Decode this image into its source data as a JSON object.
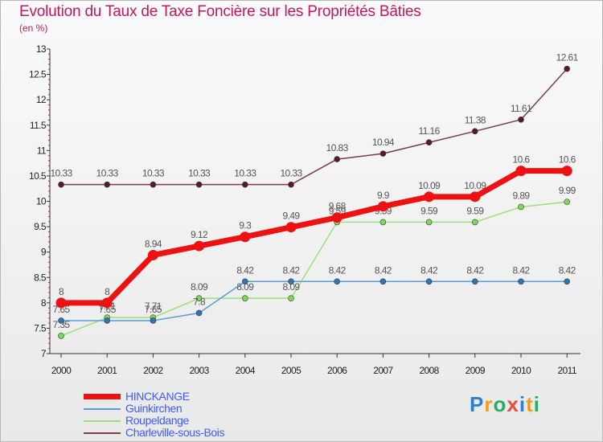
{
  "header": {
    "title": "Evolution du Taux de Taxe Foncière sur les Propriétés Bâties",
    "subtitle": "(en %)"
  },
  "logo": {
    "text": "Proxiti",
    "letters": [
      "P",
      "r",
      "o",
      "x",
      "i",
      "t",
      "i"
    ]
  },
  "chart_data": {
    "type": "line",
    "title": "Evolution du Taux de Taxe Foncière sur les Propriétés Bâties",
    "ylabel": "(en %)",
    "xlabel": "",
    "categories": [
      "2000",
      "2001",
      "2002",
      "2003",
      "2004",
      "2005",
      "2006",
      "2007",
      "2008",
      "2009",
      "2010",
      "2011"
    ],
    "ylim": [
      7,
      13
    ],
    "yticks": [
      "7",
      "7.5",
      "8",
      "8.5",
      "9",
      "9.5",
      "10",
      "10.5",
      "11",
      "11.5",
      "12",
      "12.5",
      "13"
    ],
    "legend_position": "bottom-left",
    "grid": false,
    "series": [
      {
        "name": "HINCKANGE",
        "color": "#ee1111",
        "marker_color": "#ee1111",
        "values": [
          8,
          8,
          8.94,
          9.12,
          9.3,
          9.49,
          9.68,
          9.9,
          10.09,
          10.09,
          10.6,
          10.6
        ],
        "labels": [
          "8",
          "8",
          "8.94",
          "9.12",
          "9.3",
          "9.49",
          "9.68",
          "9.9",
          "10.09",
          "10.09",
          "10.6",
          "10.6"
        ]
      },
      {
        "name": "Guinkirchen",
        "color": "#5b9bd5",
        "marker_color": "#2e75b6",
        "values": [
          7.65,
          7.65,
          7.65,
          7.8,
          8.42,
          8.42,
          8.42,
          8.42,
          8.42,
          8.42,
          8.42,
          8.42
        ],
        "labels": [
          "7.65",
          "7.65",
          "7.65",
          "7.8",
          "8.42",
          "8.42",
          "8.42",
          "8.42",
          "8.42",
          "8.42",
          "8.42",
          "8.42"
        ]
      },
      {
        "name": "Roupeldange",
        "color": "#9be07a",
        "marker_color": "#7ed957",
        "values": [
          7.35,
          7.71,
          7.71,
          8.09,
          8.09,
          8.09,
          9.59,
          9.59,
          9.59,
          9.59,
          9.89,
          9.99
        ],
        "labels": [
          "7.35",
          "7.71",
          "7.71",
          "8.09",
          "8.09",
          "8.09",
          "9.59",
          "9.59",
          "9.59",
          "9.59",
          "9.89",
          "9.99"
        ]
      },
      {
        "name": "Charleville-sous-Bois",
        "color": "#7b3f3f",
        "marker_color": "#5a1a22",
        "values": [
          10.33,
          10.33,
          10.33,
          10.33,
          10.33,
          10.33,
          10.83,
          10.94,
          11.16,
          11.38,
          11.61,
          12.61
        ],
        "labels": [
          "10.33",
          "10.33",
          "10.33",
          "10.33",
          "10.33",
          "10.33",
          "10.83",
          "10.94",
          "11.16",
          "11.38",
          "11.61",
          "12.61"
        ]
      }
    ]
  }
}
